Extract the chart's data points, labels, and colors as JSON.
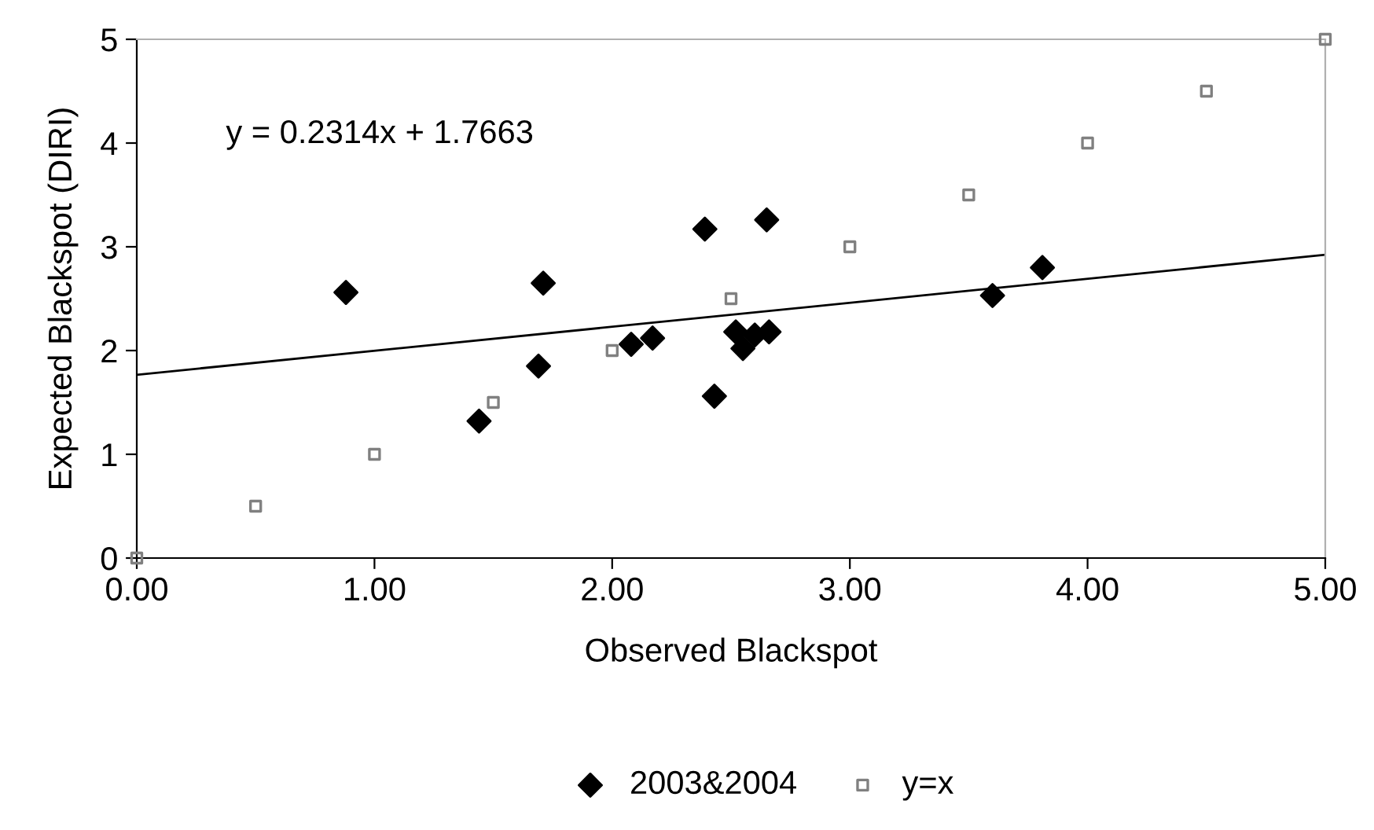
{
  "chart_data": {
    "type": "scatter",
    "xlabel": "Observed Blackspot",
    "ylabel": "Expected Blackspot (DIRI)",
    "annotations": [
      "y = 0.2314x + 1.7663"
    ],
    "xlim": [
      0,
      5
    ],
    "ylim": [
      0,
      5
    ],
    "xticks": [
      {
        "value": 0,
        "label": "0.00"
      },
      {
        "value": 1,
        "label": "1.00"
      },
      {
        "value": 2,
        "label": "2.00"
      },
      {
        "value": 3,
        "label": "3.00"
      },
      {
        "value": 4,
        "label": "4.00"
      },
      {
        "value": 5,
        "label": "5.00"
      }
    ],
    "yticks": [
      0,
      1,
      2,
      3,
      4,
      5
    ],
    "grid": false,
    "legend": "bottom",
    "series": [
      {
        "name": "2003&2004",
        "color": "#000000",
        "marker": "diamond",
        "x": [
          0.88,
          1.71,
          1.69,
          1.44,
          2.08,
          2.17,
          2.39,
          2.43,
          2.52,
          2.55,
          2.6,
          2.66,
          2.65,
          3.6,
          3.81
        ],
        "values": [
          2.56,
          2.65,
          1.85,
          1.32,
          2.06,
          2.12,
          3.17,
          1.56,
          2.18,
          2.02,
          2.15,
          2.18,
          3.26,
          2.53,
          2.8
        ]
      },
      {
        "name": "y=x",
        "color": "#808080",
        "marker": "square",
        "x": [
          0,
          0.5,
          1,
          1.5,
          2,
          2.5,
          3,
          3.5,
          4,
          4.5,
          5
        ],
        "values": [
          0,
          0.5,
          1,
          1.5,
          2,
          2.5,
          3,
          3.5,
          4,
          4.5,
          5
        ]
      },
      {
        "type": "line",
        "color": "#000000",
        "x": [
          0,
          5
        ],
        "values": [
          1.7663,
          2.9233
        ]
      }
    ]
  }
}
